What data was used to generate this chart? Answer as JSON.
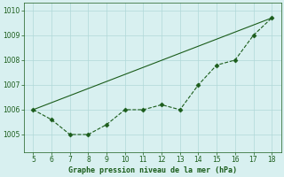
{
  "x": [
    5,
    6,
    7,
    8,
    9,
    10,
    11,
    12,
    13,
    14,
    15,
    16,
    17,
    18
  ],
  "y_data": [
    1006.0,
    1005.6,
    1005.0,
    1005.0,
    1005.4,
    1006.0,
    1006.0,
    1006.2,
    1006.0,
    1007.0,
    1007.8,
    1008.0,
    1009.0,
    1009.7
  ],
  "trend_x": [
    5,
    18
  ],
  "trend_y": [
    1006.0,
    1009.7
  ],
  "line_color": "#1a5c1a",
  "marker": "D",
  "marker_size": 2.5,
  "bg_color": "#d8f0f0",
  "grid_color": "#b0d8d8",
  "xlabel": "Graphe pression niveau de la mer (hPa)",
  "xlabel_color": "#1a5c1a",
  "xlim": [
    4.5,
    18.5
  ],
  "ylim": [
    1004.3,
    1010.3
  ],
  "yticks": [
    1005,
    1006,
    1007,
    1008,
    1009,
    1010
  ],
  "xticks": [
    5,
    6,
    7,
    8,
    9,
    10,
    11,
    12,
    13,
    14,
    15,
    16,
    17,
    18
  ],
  "tick_color": "#1a5c1a"
}
